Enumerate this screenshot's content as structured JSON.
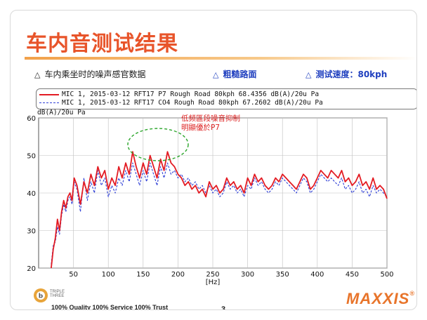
{
  "slide": {
    "title": "车内音测试结果",
    "info": {
      "item1": "车内乘坐时的噪声感官数据",
      "item2": "粗糙路面",
      "item3_label": "测试速度：",
      "item3_value": "80kph",
      "marker1": "△",
      "marker2": "△",
      "marker3": "△"
    },
    "legend": {
      "entry1": "MIC 1, 2015-03-12 RFT17 P7 Rough Road 80kph   68.4356  dB(A)/20u Pa",
      "entry2": "MIC 1, 2015-03-12 RFT17 CO4 Rough Road 80kph  67.2602  dB(A)/20u Pa"
    },
    "annotation": [
      "低频區段噪音抑制",
      "明顯優於P7"
    ],
    "footer": {
      "logo_line1": "TRIPLE",
      "logo_line2": "THREE",
      "slogan": "100% Quality   100% Service   100% Trust",
      "page_number": "3",
      "brand": "MAXXIS",
      "brand_mark": "®"
    },
    "colors": {
      "title": "#e8542a",
      "series1": "#e31b23",
      "series2": "#2f3fd6",
      "accent_blue": "#1f3fbf"
    }
  },
  "chart_data": {
    "type": "line",
    "xlabel": "[Hz]",
    "ylabel": "dB(A)/20u Pa",
    "xlim": [
      0,
      500
    ],
    "ylim": [
      20,
      60
    ],
    "xticks": [
      50,
      100,
      150,
      200,
      250,
      300,
      350,
      400,
      450,
      500
    ],
    "yticks": [
      20,
      30,
      40,
      50,
      60
    ],
    "grid": true,
    "legend_position": "top",
    "series": [
      {
        "name": "MIC 1, 2015-03-12 RFT17 P7 Rough Road 80kph 68.4356 dB(A)/20u Pa",
        "color": "#e31b23",
        "x": [
          18,
          21,
          24,
          27,
          30,
          33,
          36,
          39,
          42,
          45,
          48,
          51,
          55,
          60,
          65,
          70,
          75,
          80,
          85,
          90,
          95,
          100,
          105,
          110,
          115,
          120,
          125,
          130,
          135,
          140,
          145,
          150,
          155,
          160,
          165,
          170,
          175,
          180,
          185,
          190,
          195,
          200,
          205,
          210,
          215,
          220,
          225,
          230,
          235,
          240,
          245,
          250,
          255,
          260,
          265,
          270,
          275,
          280,
          285,
          290,
          295,
          300,
          305,
          310,
          315,
          320,
          325,
          330,
          335,
          340,
          345,
          350,
          355,
          360,
          365,
          370,
          375,
          380,
          385,
          390,
          395,
          400,
          405,
          410,
          415,
          420,
          425,
          430,
          435,
          440,
          445,
          450,
          455,
          460,
          465,
          470,
          475,
          480,
          485,
          490,
          495,
          500
        ],
        "y": [
          20,
          25,
          28,
          33,
          30,
          35,
          38,
          36,
          39,
          40,
          38,
          44,
          42,
          37,
          43,
          40,
          45,
          42,
          47,
          44,
          46,
          41,
          44,
          42,
          47,
          44,
          48,
          45,
          51,
          47,
          44,
          48,
          45,
          50,
          47,
          44,
          49,
          46,
          51,
          48,
          47,
          45,
          44,
          42,
          43,
          41,
          42,
          40,
          41,
          39,
          43,
          41,
          42,
          40,
          41,
          44,
          42,
          43,
          41,
          42,
          40,
          44,
          42,
          45,
          43,
          44,
          42,
          41,
          42,
          44,
          43,
          45,
          44,
          43,
          42,
          41,
          43,
          45,
          44,
          41,
          42,
          44,
          46,
          45,
          44,
          46,
          45,
          44,
          46,
          43,
          44,
          42,
          43,
          45,
          42,
          43,
          41,
          44,
          41,
          42,
          41,
          38.5
        ]
      },
      {
        "name": "MIC 1, 2015-03-12 RFT17 CO4 Rough Road 80kph 67.2602 dB(A)/20u Pa",
        "color": "#2f3fd6",
        "x": [
          18,
          21,
          24,
          27,
          30,
          33,
          36,
          39,
          42,
          45,
          48,
          51,
          55,
          60,
          65,
          70,
          75,
          80,
          85,
          90,
          95,
          100,
          105,
          110,
          115,
          120,
          125,
          130,
          135,
          140,
          145,
          150,
          155,
          160,
          165,
          170,
          175,
          180,
          185,
          190,
          195,
          200,
          205,
          210,
          215,
          220,
          225,
          230,
          235,
          240,
          245,
          250,
          255,
          260,
          265,
          270,
          275,
          280,
          285,
          290,
          295,
          300,
          305,
          310,
          315,
          320,
          325,
          330,
          335,
          340,
          345,
          350,
          355,
          360,
          365,
          370,
          375,
          380,
          385,
          390,
          395,
          400,
          405,
          410,
          415,
          420,
          425,
          430,
          435,
          440,
          445,
          450,
          455,
          460,
          465,
          470,
          475,
          480,
          485,
          490,
          495,
          500
        ],
        "y": [
          21,
          26,
          27,
          31,
          29,
          34,
          37,
          35,
          38,
          39,
          37,
          43,
          41,
          35,
          44,
          38,
          43,
          40,
          46,
          42,
          44,
          39,
          42,
          40,
          44,
          42,
          46,
          43,
          48,
          45,
          42,
          46,
          43,
          48,
          45,
          42,
          47,
          44,
          48,
          45,
          46,
          44,
          45,
          43,
          44,
          42,
          43,
          41,
          42,
          40,
          42,
          40,
          41,
          39,
          40,
          43,
          41,
          42,
          40,
          41,
          39,
          42,
          41,
          44,
          42,
          43,
          41,
          40,
          41,
          43,
          42,
          44,
          43,
          42,
          41,
          40,
          42,
          44,
          43,
          40,
          41,
          43,
          45,
          44,
          43,
          44,
          43,
          42,
          44,
          41,
          42,
          40,
          41,
          43,
          40,
          41,
          39,
          42,
          40,
          41,
          40,
          39
        ]
      }
    ]
  }
}
